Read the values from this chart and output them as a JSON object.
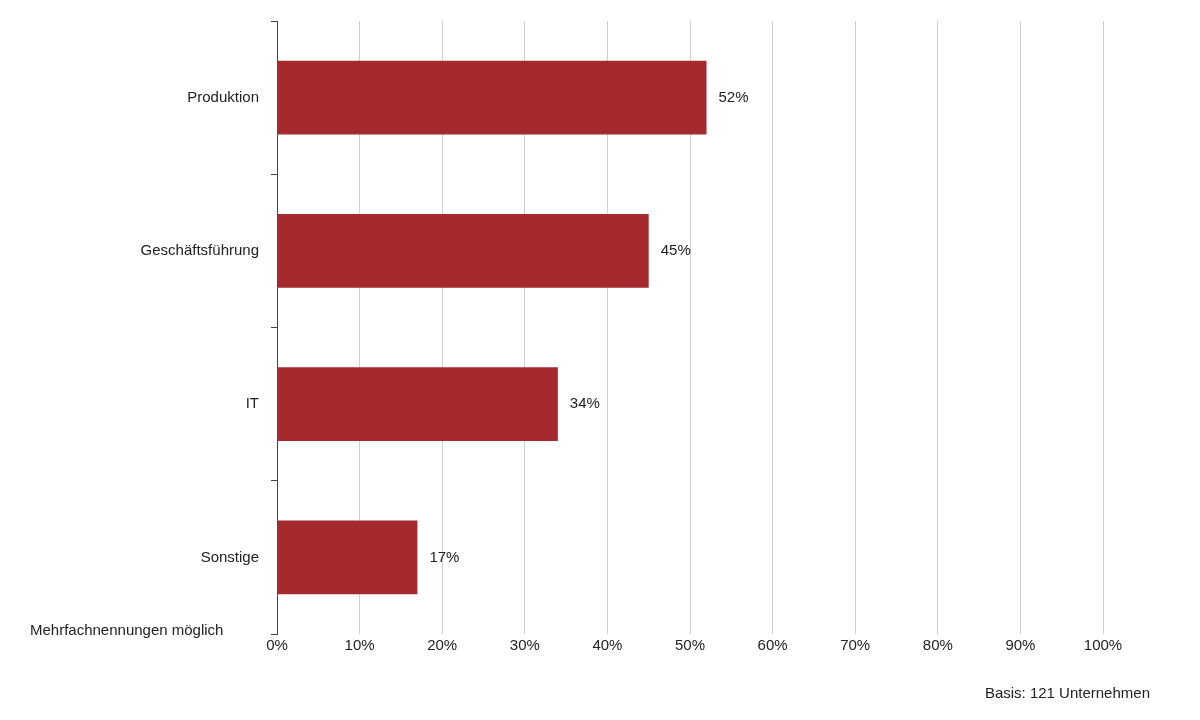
{
  "chart_data": {
    "type": "bar",
    "orientation": "horizontal",
    "categories": [
      "Produktion",
      "Geschäftsführung",
      "IT",
      "Sonstige"
    ],
    "values": [
      52,
      45,
      34,
      17
    ],
    "color": "#a52a2e",
    "value_labels": [
      "52%",
      "45%",
      "34%",
      "17%"
    ],
    "xlim": [
      0,
      100
    ],
    "xticks": [
      {
        "value": 0,
        "label": "0%"
      },
      {
        "value": 10,
        "label": "10%"
      },
      {
        "value": 20,
        "label": "20%"
      },
      {
        "value": 30,
        "label": "30%"
      },
      {
        "value": 40,
        "label": "40%"
      },
      {
        "value": 50,
        "label": "50%"
      },
      {
        "value": 60,
        "label": "60%"
      },
      {
        "value": 70,
        "label": "70%"
      },
      {
        "value": 80,
        "label": "80%"
      },
      {
        "value": 90,
        "label": "90%"
      },
      {
        "value": 100,
        "label": "100%"
      }
    ],
    "grid": "x",
    "legend": false,
    "annotations": [
      "Mehrfachnennungen möglich",
      "Basis: 121 Unternehmen"
    ]
  }
}
